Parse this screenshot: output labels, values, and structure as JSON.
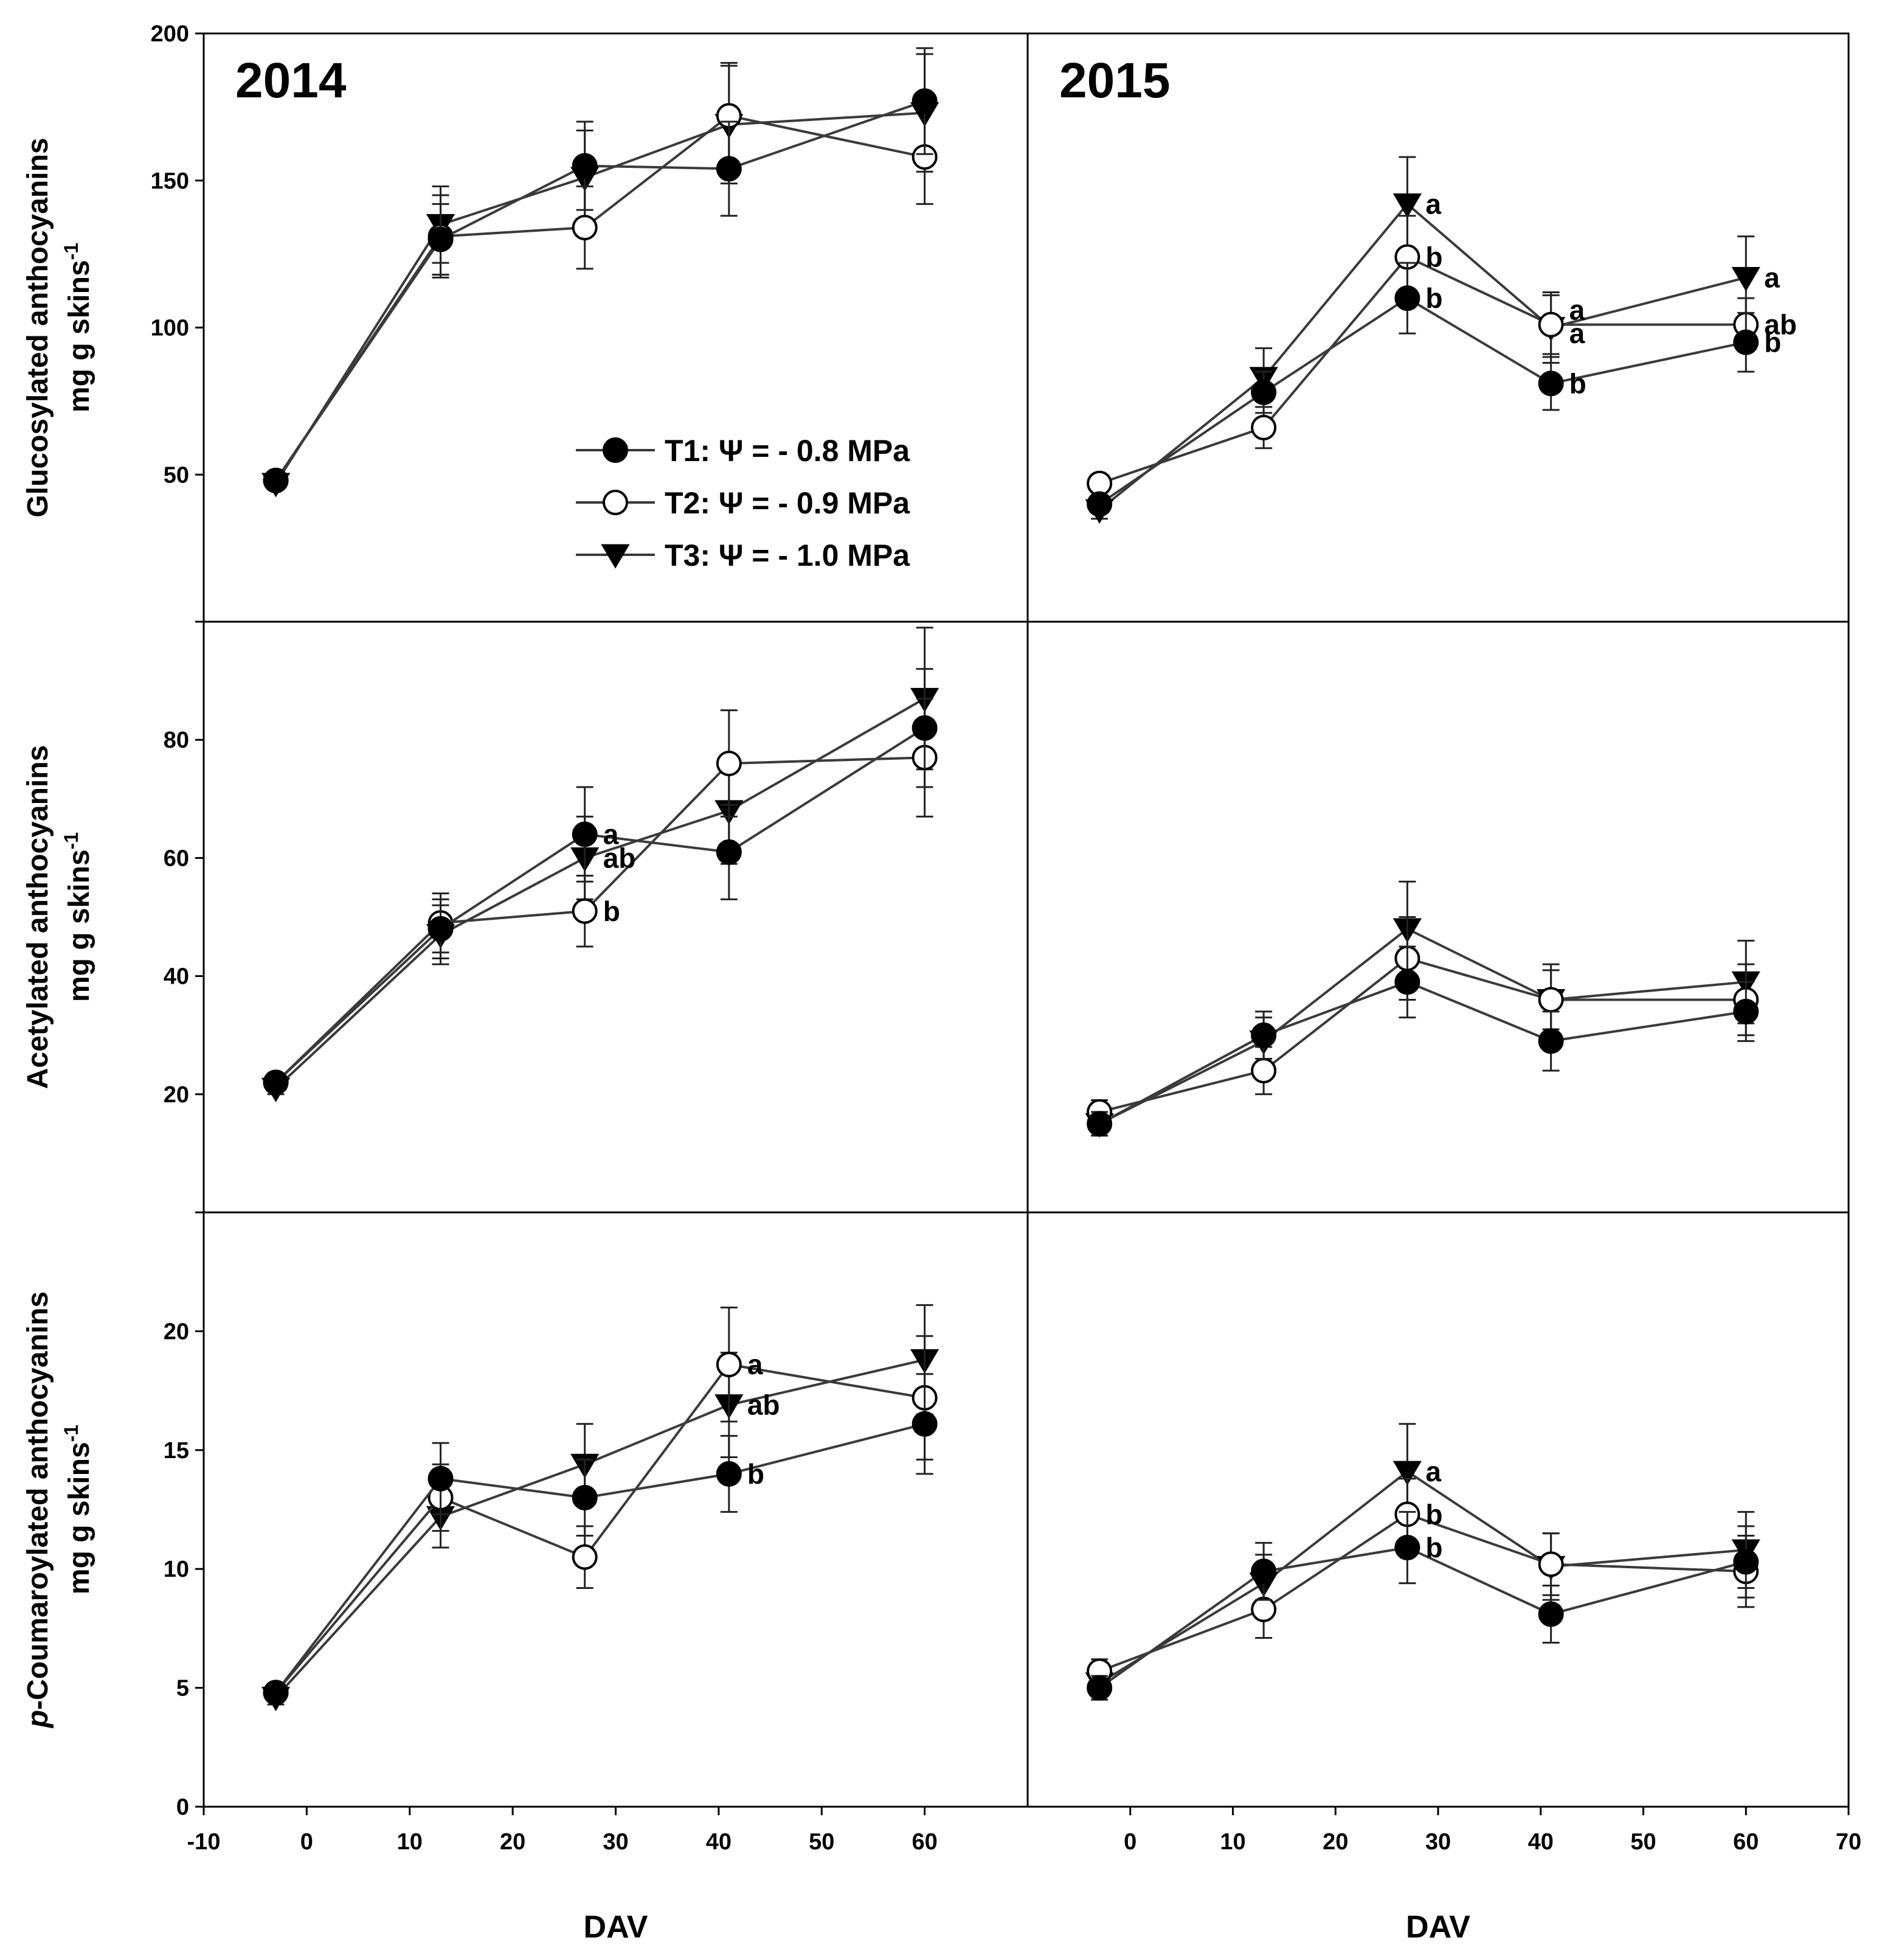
{
  "chart_data": {
    "type": "line",
    "xlabel": "DAV",
    "legend": {
      "placement": "panel-2014-glucosylated-lower-right",
      "entries": [
        {
          "series": "T1",
          "label": "T1: Ψ = - 0.8 MPa",
          "marker": "filled-circle"
        },
        {
          "series": "T2",
          "label": "T2: Ψ = - 0.9 MPa",
          "marker": "open-circle"
        },
        {
          "series": "T3",
          "label": "T3: Ψ = - 1.0 MPa",
          "marker": "filled-triangle-down"
        }
      ]
    },
    "columns": [
      {
        "year_label": "2014",
        "xlim": [
          -10,
          70
        ],
        "xticks": [
          -10,
          0,
          10,
          20,
          30,
          40,
          50,
          60
        ],
        "x": [
          -3,
          13,
          27,
          41,
          60
        ]
      },
      {
        "year_label": "2015",
        "xlim": [
          -10,
          70
        ],
        "xticks": [
          0,
          10,
          20,
          30,
          40,
          50,
          60,
          70
        ],
        "x": [
          -3,
          13,
          27,
          41,
          60
        ]
      }
    ],
    "rows": [
      {
        "ylabel_line1": "Glucosylated anthocyanins",
        "ylabel_line2": "mg g skins",
        "ylabel_sup": "-1",
        "ylim": [
          0,
          200
        ],
        "yticks": [
          50,
          100,
          150,
          200
        ],
        "panels": [
          {
            "series": [
              {
                "name": "T1",
                "y": [
                  48,
                  130,
                  155,
                  154,
                  177
                ],
                "err": [
                  2,
                  12,
                  15,
                  16,
                  18
                ]
              },
              {
                "name": "T2",
                "y": [
                  48,
                  131,
                  134,
                  172,
                  158
                ],
                "err": [
                  2,
                  14,
                  14,
                  18,
                  16
                ]
              },
              {
                "name": "T3",
                "y": [
                  47,
                  135,
                  151,
                  169,
                  173
                ],
                "err": [
                  2,
                  13,
                  16,
                  20,
                  20
                ]
              }
            ],
            "annotations": []
          },
          {
            "series": [
              {
                "name": "T1",
                "y": [
                  40,
                  78,
                  110,
                  81,
                  95
                ],
                "err": [
                  3,
                  7,
                  12,
                  9,
                  10
                ]
              },
              {
                "name": "T2",
                "y": [
                  47,
                  66,
                  124,
                  101,
                  101
                ],
                "err": [
                  3,
                  7,
                  14,
                  10,
                  9
                ]
              },
              {
                "name": "T3",
                "y": [
                  38,
                  83,
                  142,
                  100,
                  117
                ],
                "err": [
                  3,
                  10,
                  16,
                  12,
                  14
                ]
              }
            ],
            "annotations": [
              {
                "x": 27,
                "y": 142,
                "text": "a"
              },
              {
                "x": 27,
                "y": 124,
                "text": "b"
              },
              {
                "x": 27,
                "y": 110,
                "text": "b"
              },
              {
                "x": 41,
                "y": 106,
                "text": "a"
              },
              {
                "x": 41,
                "y": 98,
                "text": "a"
              },
              {
                "x": 41,
                "y": 81,
                "text": "b"
              },
              {
                "x": 60,
                "y": 117,
                "text": "a"
              },
              {
                "x": 60,
                "y": 101,
                "text": "ab"
              },
              {
                "x": 60,
                "y": 95,
                "text": "b"
              }
            ]
          }
        ]
      },
      {
        "ylabel_line1": "Acetylated anthocyanins",
        "ylabel_line2": "mg g skins",
        "ylabel_sup": "-1",
        "ylim": [
          0,
          100
        ],
        "yticks": [
          20,
          40,
          60,
          80
        ],
        "panels": [
          {
            "series": [
              {
                "name": "T1",
                "y": [
                  22,
                  48,
                  64,
                  61,
                  82
                ],
                "err": [
                  1,
                  5,
                  8,
                  8,
                  10
                ]
              },
              {
                "name": "T2",
                "y": [
                  22,
                  49,
                  51,
                  76,
                  77
                ],
                "err": [
                  1,
                  5,
                  6,
                  9,
                  10
                ]
              },
              {
                "name": "T3",
                "y": [
                  21,
                  47,
                  60,
                  68,
                  87
                ],
                "err": [
                  1,
                  5,
                  7,
                  9,
                  12
                ]
              }
            ],
            "annotations": [
              {
                "x": 27,
                "y": 64,
                "text": "a"
              },
              {
                "x": 27,
                "y": 60,
                "text": "ab"
              },
              {
                "x": 27,
                "y": 51,
                "text": "b"
              }
            ]
          },
          {
            "series": [
              {
                "name": "T1",
                "y": [
                  15,
                  30,
                  39,
                  29,
                  34
                ],
                "err": [
                  2,
                  4,
                  6,
                  5,
                  5
                ]
              },
              {
                "name": "T2",
                "y": [
                  17,
                  24,
                  43,
                  36,
                  36
                ],
                "err": [
                  2,
                  4,
                  7,
                  5,
                  6
                ]
              },
              {
                "name": "T3",
                "y": [
                  15,
                  29,
                  48,
                  36,
                  39
                ],
                "err": [
                  2,
                  4,
                  8,
                  6,
                  7
                ]
              }
            ],
            "annotations": []
          }
        ]
      },
      {
        "ylabel_line1": "p-Coumaroylated anthocyanins",
        "ylabel_line2": "mg g skins",
        "ylabel_sup": "-1",
        "ylim": [
          0,
          25
        ],
        "yticks": [
          0,
          5,
          10,
          15,
          20
        ],
        "panels": [
          {
            "series": [
              {
                "name": "T1",
                "y": [
                  4.8,
                  13.8,
                  13.0,
                  14.0,
                  16.1
                ],
                "err": [
                  0.3,
                  1.5,
                  1.6,
                  1.6,
                  2.1
                ]
              },
              {
                "name": "T2",
                "y": [
                  4.8,
                  13.0,
                  10.5,
                  18.6,
                  17.2
                ],
                "err": [
                  0.3,
                  1.4,
                  1.3,
                  2.4,
                  2.6
                ]
              },
              {
                "name": "T3",
                "y": [
                  4.6,
                  12.2,
                  14.4,
                  16.9,
                  18.8
                ],
                "err": [
                  0.3,
                  1.3,
                  1.7,
                  2.2,
                  2.3
                ]
              }
            ],
            "annotations": [
              {
                "x": 41,
                "y": 18.6,
                "text": "a"
              },
              {
                "x": 41,
                "y": 16.9,
                "text": "ab"
              },
              {
                "x": 41,
                "y": 14.0,
                "text": "b"
              }
            ]
          },
          {
            "series": [
              {
                "name": "T1",
                "y": [
                  5.0,
                  9.9,
                  10.9,
                  8.1,
                  10.3
                ],
                "err": [
                  0.5,
                  1.2,
                  1.5,
                  1.2,
                  1.5
                ]
              },
              {
                "name": "T2",
                "y": [
                  5.7,
                  8.3,
                  12.3,
                  10.2,
                  9.9
                ],
                "err": [
                  0.5,
                  1.2,
                  1.5,
                  1.3,
                  1.5
                ]
              },
              {
                "name": "T3",
                "y": [
                  5.2,
                  9.4,
                  14.1,
                  10.1,
                  10.8
                ],
                "err": [
                  0.5,
                  1.2,
                  2.0,
                  1.4,
                  1.6
                ]
              }
            ],
            "annotations": [
              {
                "x": 27,
                "y": 14.1,
                "text": "a"
              },
              {
                "x": 27,
                "y": 12.3,
                "text": "b"
              },
              {
                "x": 27,
                "y": 10.9,
                "text": "b"
              }
            ]
          }
        ]
      }
    ]
  }
}
